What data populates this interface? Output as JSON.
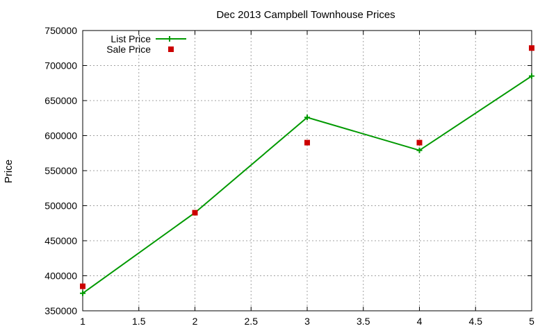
{
  "chart_data": {
    "type": "line",
    "title": "Dec 2013 Campbell Townhouse Prices",
    "xlabel": "",
    "ylabel": "Price",
    "xlim": [
      1,
      5
    ],
    "ylim": [
      350000,
      750000
    ],
    "x_ticks": [
      "1",
      "1.5",
      "2",
      "2.5",
      "3",
      "3.5",
      "4",
      "4.5",
      "5"
    ],
    "y_ticks": [
      "350000",
      "400000",
      "450000",
      "500000",
      "550000",
      "600000",
      "650000",
      "700000",
      "750000"
    ],
    "grid": true,
    "legend_position": "top-left",
    "series": [
      {
        "name": "List Price",
        "style": "line-with-plus-markers",
        "color": "#009900",
        "x": [
          1,
          2,
          3,
          4,
          5
        ],
        "y": [
          375000,
          490000,
          626000,
          579000,
          685000
        ]
      },
      {
        "name": "Sale Price",
        "style": "square-markers",
        "color": "#cc0000",
        "x": [
          1,
          2,
          3,
          4,
          5
        ],
        "y": [
          385000,
          490000,
          590000,
          590000,
          725000
        ]
      }
    ]
  }
}
